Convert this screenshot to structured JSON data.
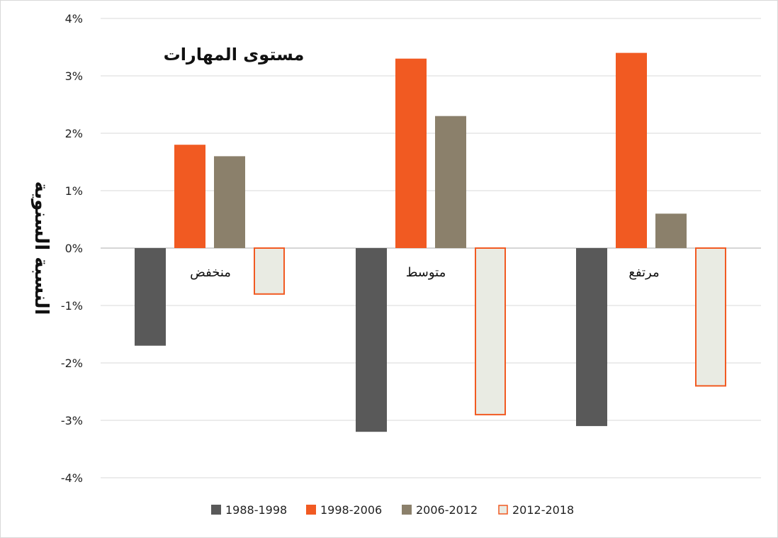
{
  "chart_data": {
    "type": "bar",
    "title": "مستوى المهارات",
    "ylabel": "النسبة السنوية",
    "xlabel": "",
    "ylim": [
      -4,
      4
    ],
    "yticks": [
      4,
      3,
      2,
      1,
      0,
      -1,
      -2,
      -3,
      -4
    ],
    "ytick_labels": [
      "4%",
      "3%",
      "2%",
      "1%",
      "0%",
      "-1%",
      "-2%",
      "-3%",
      "-4%"
    ],
    "categories": [
      "منخفض",
      "متوسط",
      "مرتفع"
    ],
    "series": [
      {
        "name": "1988-1998",
        "values": [
          -1.7,
          -3.2,
          -3.1
        ],
        "color": "#595959",
        "style": "solid"
      },
      {
        "name": "1998-2006",
        "values": [
          1.8,
          3.3,
          3.4
        ],
        "color": "#f15a22",
        "style": "solid"
      },
      {
        "name": "2006-2012",
        "values": [
          1.6,
          2.3,
          0.6
        ],
        "color": "#8b806b",
        "style": "solid"
      },
      {
        "name": "2012-2018",
        "values": [
          -0.8,
          -2.9,
          -2.4
        ],
        "color": "#f15a22",
        "fill": "#e9ebe3",
        "style": "outline"
      }
    ],
    "grid": true,
    "legend": "bottom"
  }
}
